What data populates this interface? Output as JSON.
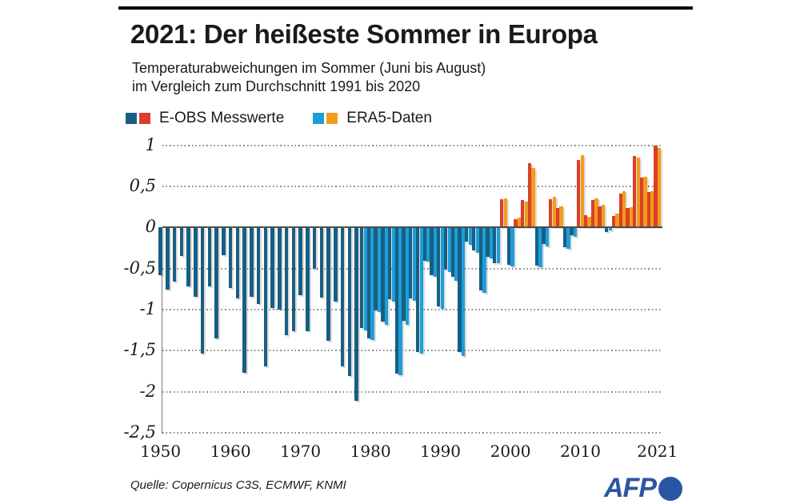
{
  "header": {
    "title": "2021: Der heißeste Sommer in Europa",
    "subtitle_line1": "Temperaturabweichungen im Sommer (Juni bis August)",
    "subtitle_line2": "im Vergleich zum Durchschnitt 1991 bis 2020"
  },
  "legend": [
    {
      "label": "E-OBS Messwerte",
      "colors": [
        "#175f82",
        "#d9402a"
      ]
    },
    {
      "label": "ERA5-Daten",
      "colors": [
        "#1e9ed9",
        "#f39c1a"
      ]
    }
  ],
  "footer": {
    "source": "Quelle: Copernicus C3S, ECMWF, KNMI",
    "logo_text": "AFP",
    "logo_color": "#2a55a4"
  },
  "chart_data": {
    "type": "bar",
    "title": "2021: Der heißeste Sommer in Europa",
    "subtitle": "Temperaturabweichungen im Sommer (Juni bis August) im Vergleich zum Durchschnitt 1991 bis 2020",
    "unit": "°C",
    "grid": "horizontal dotted",
    "legend_position": "top",
    "ylim": [
      -2.5,
      1
    ],
    "y_ticks": [
      "1",
      "0,5",
      "0",
      "-0,5",
      "-1",
      "-1,5",
      "-2",
      "-2,5"
    ],
    "y_tick_values": [
      1,
      0.5,
      0,
      -0.5,
      -1,
      -1.5,
      -2,
      -2.5
    ],
    "x_ticks": [
      1950,
      1960,
      1970,
      1980,
      1990,
      2000,
      2010,
      2021
    ],
    "year_start": 1950,
    "year_end": 2021,
    "series": [
      {
        "id": "eobs",
        "name": "E-OBS Messwerte",
        "color_negative": "#175f82",
        "color_positive": "#d9402a",
        "values": [
          -0.58,
          -0.76,
          -0.66,
          -0.35,
          -0.72,
          -0.84,
          -1.54,
          -0.72,
          -1.35,
          -0.34,
          -0.74,
          -0.86,
          -1.77,
          -0.84,
          -0.93,
          -1.69,
          -0.98,
          -1.0,
          -1.31,
          -1.26,
          -0.82,
          -1.26,
          -0.5,
          -0.85,
          -1.38,
          -0.9,
          -1.69,
          -1.81,
          -2.11,
          -1.22,
          -1.35,
          -1.01,
          -1.15,
          -0.87,
          -1.78,
          -1.14,
          -0.86,
          -1.52,
          -0.41,
          -0.58,
          -0.96,
          -0.51,
          -0.6,
          -1.52,
          -0.17,
          -0.28,
          -0.77,
          -0.36,
          -0.44,
          0.34,
          -0.45,
          0.1,
          0.33,
          0.78,
          -0.46,
          -0.2,
          0.34,
          0.24,
          -0.24,
          -0.09,
          0.82,
          0.15,
          0.33,
          0.26,
          -0.06,
          0.14,
          0.41,
          0.24,
          0.87,
          0.61,
          0.43,
          1.0
        ]
      },
      {
        "id": "era5",
        "name": "ERA5-Daten",
        "color_negative": "#1e9ed9",
        "color_positive": "#f39c1a",
        "values": [
          null,
          null,
          null,
          null,
          null,
          null,
          null,
          null,
          null,
          null,
          null,
          null,
          null,
          null,
          null,
          null,
          null,
          null,
          null,
          null,
          null,
          null,
          null,
          null,
          null,
          null,
          null,
          null,
          null,
          -1.25,
          -1.37,
          -1.03,
          -1.18,
          -0.9,
          -1.8,
          -1.18,
          -0.89,
          -1.54,
          -0.42,
          -0.6,
          -0.99,
          -0.54,
          -0.65,
          -1.56,
          -0.21,
          -0.31,
          -0.8,
          -0.38,
          -0.44,
          0.35,
          -0.47,
          0.12,
          0.31,
          0.72,
          -0.48,
          -0.23,
          0.37,
          0.26,
          -0.26,
          -0.11,
          0.88,
          0.13,
          0.35,
          0.28,
          -0.04,
          0.17,
          0.44,
          0.25,
          0.85,
          0.62,
          0.44,
          0.97
        ]
      }
    ]
  }
}
